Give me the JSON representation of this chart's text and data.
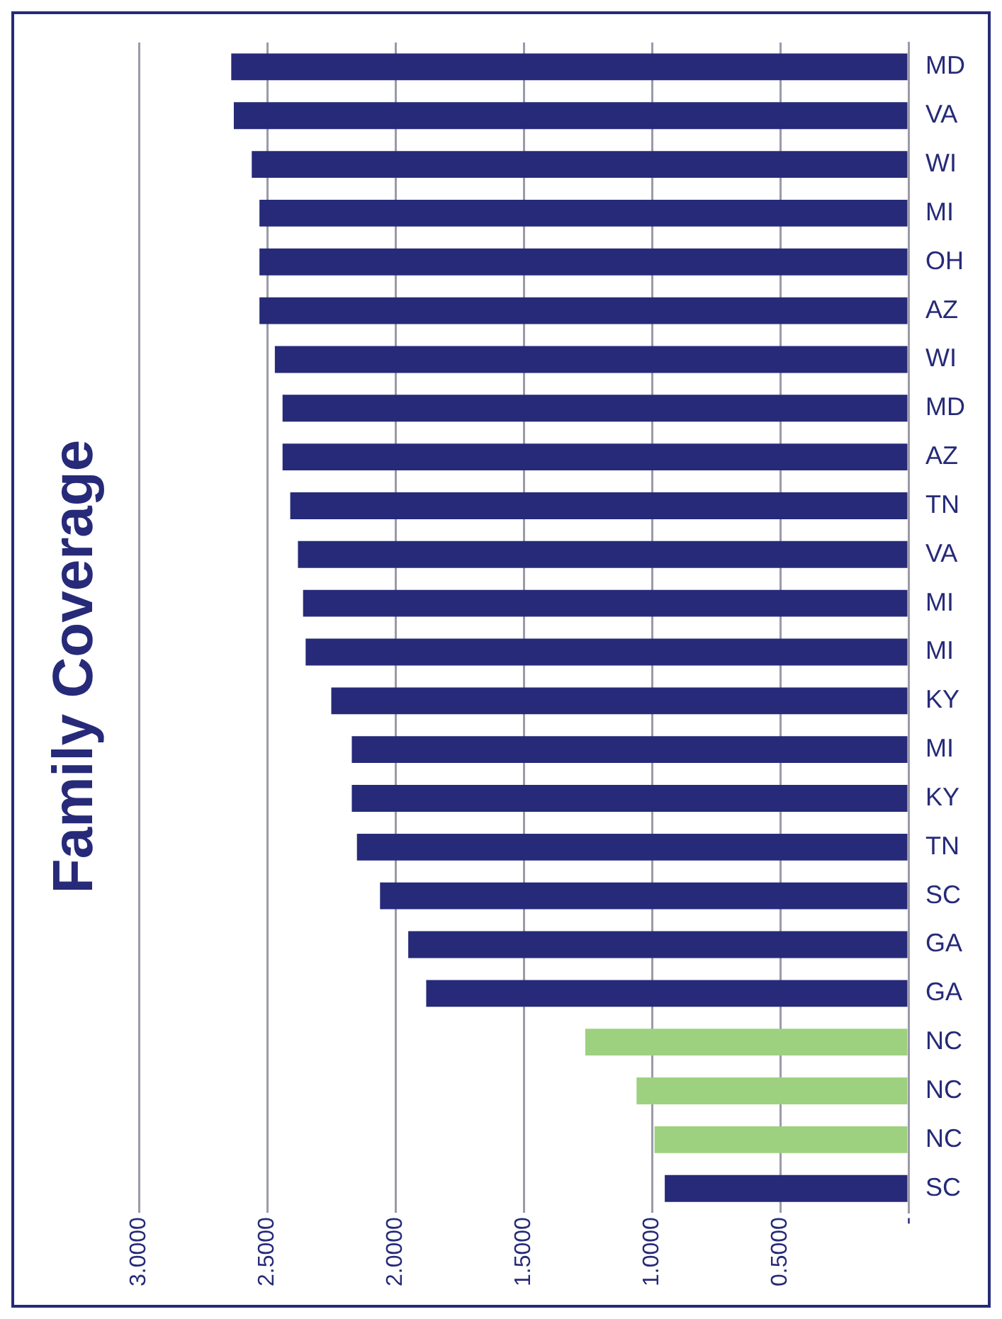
{
  "chart_data": {
    "type": "bar",
    "orientation": "horizontal",
    "title": "Family Coverage",
    "categories": [
      "MD",
      "VA",
      "WI",
      "MI",
      "OH",
      "AZ",
      "WI",
      "MD",
      "AZ",
      "TN",
      "VA",
      "MI",
      "MI",
      "KY",
      "MI",
      "KY",
      "TN",
      "SC",
      "GA",
      "GA",
      "NC",
      "NC",
      "NC",
      "SC"
    ],
    "values": [
      2.64,
      2.63,
      2.56,
      2.53,
      2.53,
      2.53,
      2.47,
      2.44,
      2.44,
      2.41,
      2.38,
      2.36,
      2.35,
      2.25,
      2.17,
      2.17,
      2.15,
      2.06,
      1.95,
      1.88,
      1.26,
      1.06,
      0.99,
      0.95
    ],
    "colors": [
      "#262a78",
      "#262a78",
      "#262a78",
      "#262a78",
      "#262a78",
      "#262a78",
      "#262a78",
      "#262a78",
      "#262a78",
      "#262a78",
      "#262a78",
      "#262a78",
      "#262a78",
      "#262a78",
      "#262a78",
      "#262a78",
      "#262a78",
      "#262a78",
      "#262a78",
      "#262a78",
      "#9dd17f",
      "#9dd17f",
      "#9dd17f",
      "#262a78"
    ],
    "xlim": [
      3,
      0
    ],
    "xticks": [
      {
        "value": 3,
        "label": "3.0000"
      },
      {
        "value": 2.5,
        "label": "2.5000"
      },
      {
        "value": 2,
        "label": "2.0000"
      },
      {
        "value": 1.5,
        "label": "1.5000"
      },
      {
        "value": 1,
        "label": "1.0000"
      },
      {
        "value": 0.5,
        "label": "0.5000"
      },
      {
        "value": 0,
        "label": "-"
      }
    ],
    "grid": "x",
    "legend": false
  }
}
